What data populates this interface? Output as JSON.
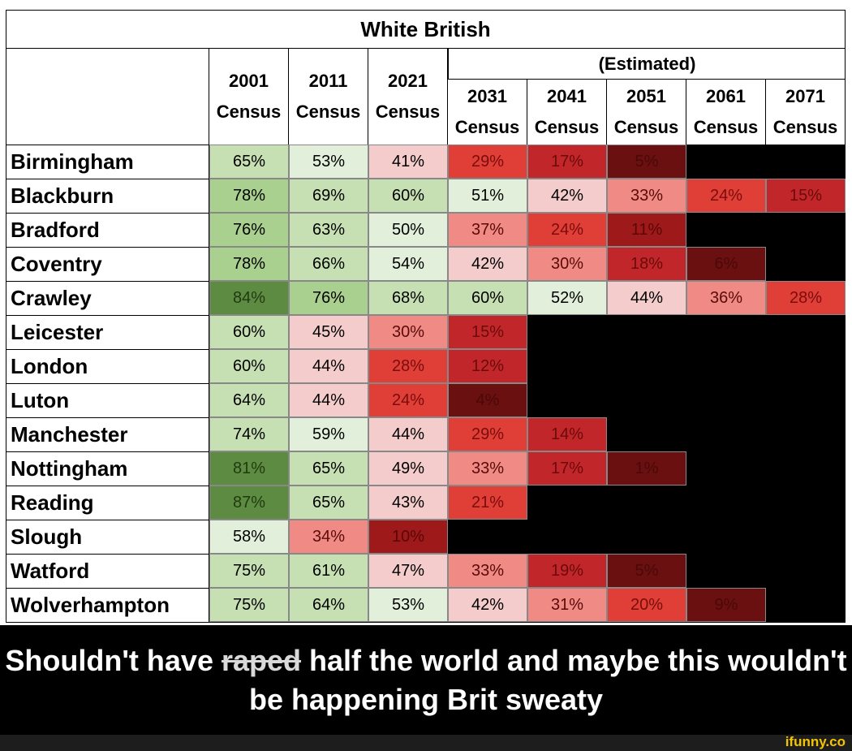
{
  "table": {
    "title": "White British",
    "estimated_label": "(Estimated)",
    "columns": [
      {
        "year": "2001",
        "label": "Census"
      },
      {
        "year": "2011",
        "label": "Census"
      },
      {
        "year": "2021",
        "label": "Census"
      },
      {
        "year": "2031",
        "label": "Census"
      },
      {
        "year": "2041",
        "label": "Census"
      },
      {
        "year": "2051",
        "label": "Census"
      },
      {
        "year": "2061",
        "label": "Census"
      },
      {
        "year": "2071",
        "label": "Census"
      }
    ],
    "rows": [
      {
        "name": "Birmingham",
        "values": [
          "65%",
          "53%",
          "41%",
          "29%",
          "17%",
          "5%",
          null,
          null
        ]
      },
      {
        "name": "Blackburn",
        "values": [
          "78%",
          "69%",
          "60%",
          "51%",
          "42%",
          "33%",
          "24%",
          "15%"
        ]
      },
      {
        "name": "Bradford",
        "values": [
          "76%",
          "63%",
          "50%",
          "37%",
          "24%",
          "11%",
          null,
          null
        ]
      },
      {
        "name": "Coventry",
        "values": [
          "78%",
          "66%",
          "54%",
          "42%",
          "30%",
          "18%",
          "6%",
          null
        ]
      },
      {
        "name": "Crawley",
        "values": [
          "84%",
          "76%",
          "68%",
          "60%",
          "52%",
          "44%",
          "36%",
          "28%"
        ]
      },
      {
        "name": "Leicester",
        "values": [
          "60%",
          "45%",
          "30%",
          "15%",
          null,
          null,
          null,
          null
        ]
      },
      {
        "name": "London",
        "values": [
          "60%",
          "44%",
          "28%",
          "12%",
          null,
          null,
          null,
          null
        ]
      },
      {
        "name": "Luton",
        "values": [
          "64%",
          "44%",
          "24%",
          "4%",
          null,
          null,
          null,
          null
        ]
      },
      {
        "name": "Manchester",
        "values": [
          "74%",
          "59%",
          "44%",
          "29%",
          "14%",
          null,
          null,
          null
        ]
      },
      {
        "name": "Nottingham",
        "values": [
          "81%",
          "65%",
          "49%",
          "33%",
          "17%",
          "1%",
          null,
          null
        ]
      },
      {
        "name": "Reading",
        "values": [
          "87%",
          "65%",
          "43%",
          "21%",
          null,
          null,
          null,
          null
        ]
      },
      {
        "name": "Slough",
        "values": [
          "58%",
          "34%",
          "10%",
          null,
          null,
          null,
          null,
          null
        ]
      },
      {
        "name": "Watford",
        "values": [
          "75%",
          "61%",
          "47%",
          "33%",
          "19%",
          "5%",
          null,
          null
        ]
      },
      {
        "name": "Wolverhampton",
        "values": [
          "75%",
          "64%",
          "53%",
          "42%",
          "31%",
          "20%",
          "9%",
          null
        ]
      }
    ]
  },
  "caption": {
    "before": "Shouldn't have ",
    "struck": "raped",
    "after": " half the world and maybe this wouldn't be happening Brit sweaty"
  },
  "watermark": "ifunny.co"
}
